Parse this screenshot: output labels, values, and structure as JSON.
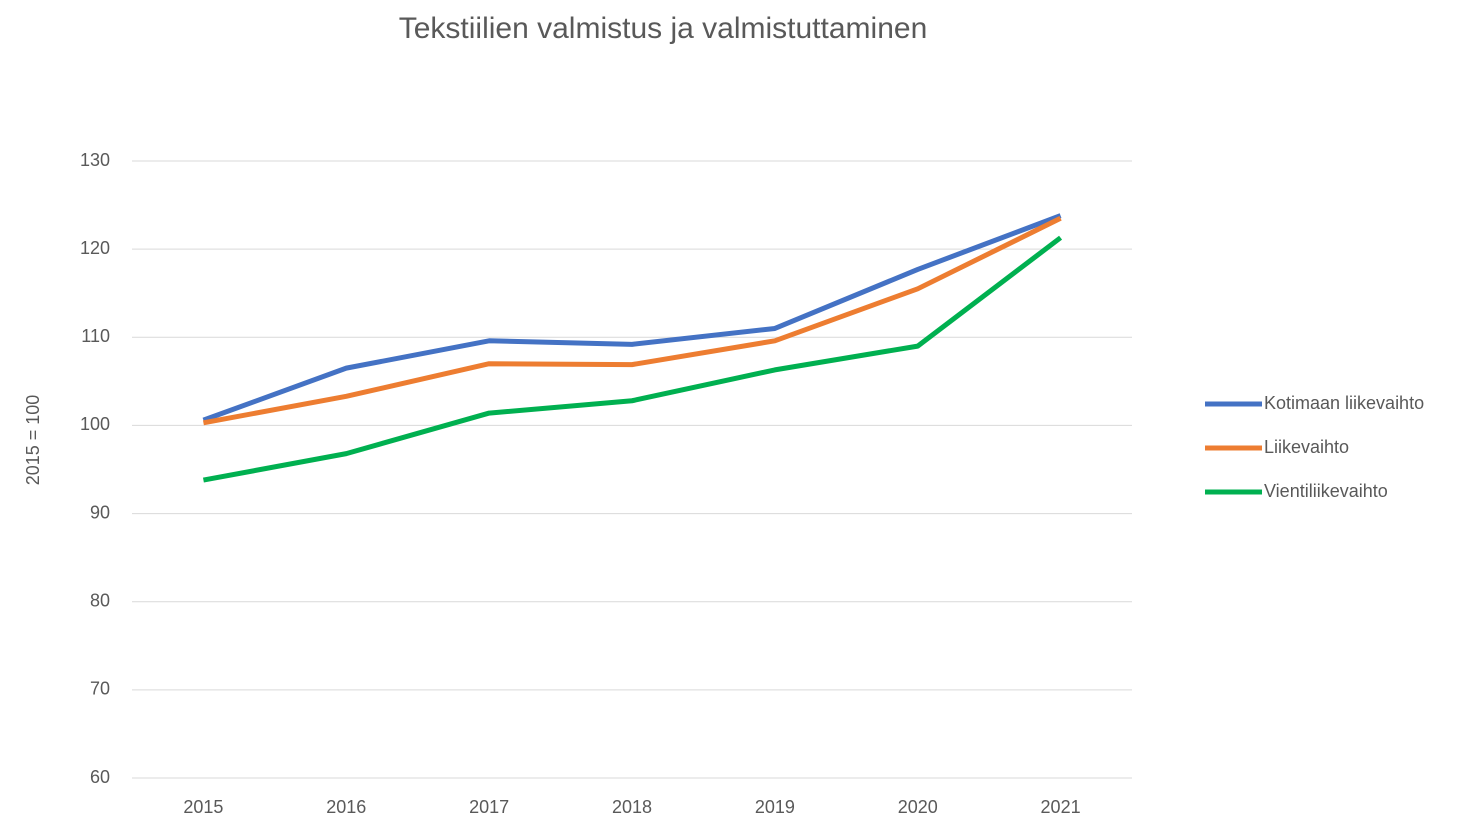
{
  "chart_data": {
    "type": "line",
    "title": "Tekstiilien valmistus ja valmistuttaminen",
    "y_label": "2015  = 100",
    "categories": [
      "2015",
      "2016",
      "2017",
      "2018",
      "2019",
      "2020",
      "2021"
    ],
    "series": [
      {
        "name": "Kotimaan liikevaihto",
        "color": "#4472c4",
        "values": [
          100.6,
          106.5,
          109.6,
          109.2,
          111.0,
          117.7,
          123.8
        ]
      },
      {
        "name": "Liikevaihto",
        "color": "#ed7d31",
        "values": [
          100.3,
          103.3,
          107.0,
          106.9,
          109.6,
          115.5,
          123.5
        ]
      },
      {
        "name": "Vientiliikevaihto",
        "color": "#00b050",
        "values": [
          93.8,
          96.8,
          101.4,
          102.8,
          106.3,
          109.0,
          121.3
        ]
      }
    ],
    "ylim": [
      60,
      130
    ],
    "yticks": [
      60,
      70,
      80,
      90,
      100,
      110,
      120,
      130
    ],
    "grid": true,
    "legend": "right"
  }
}
